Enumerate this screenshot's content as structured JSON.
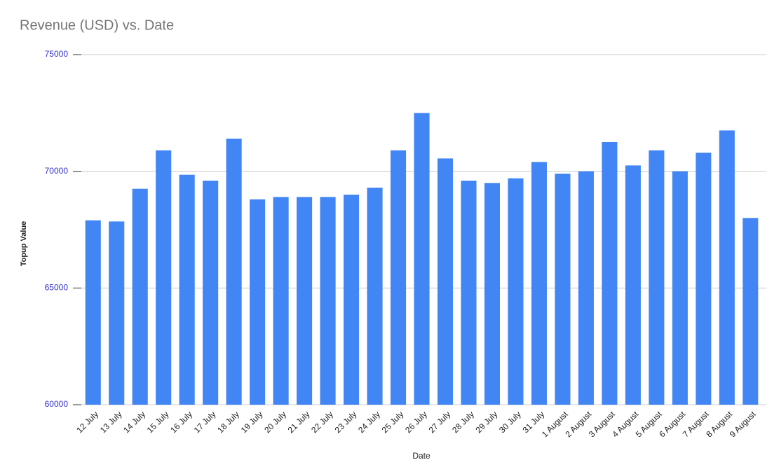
{
  "chart_data": {
    "type": "bar",
    "title": "Revenue (USD) vs. Date",
    "x_label": "Date",
    "y_label": "Topup Value",
    "categories": [
      "12 July",
      "13 July",
      "14 July",
      "15 July",
      "16 July",
      "17 July",
      "18 July",
      "19 July",
      "20 July",
      "21 July",
      "22 July",
      "23 July",
      "24 July",
      "25 July",
      "26 July",
      "27 July",
      "28 July",
      "29 July",
      "30 July",
      "31 July",
      "1 August",
      "2 August",
      "3 August",
      "4 August",
      "5 August",
      "6 August",
      "7 August",
      "8 August",
      "9 August"
    ],
    "values": [
      67900,
      67850,
      69250,
      70900,
      69850,
      69600,
      71400,
      68800,
      68900,
      68900,
      68900,
      69000,
      69300,
      70900,
      72500,
      70550,
      69600,
      69500,
      69700,
      70400,
      69900,
      70000,
      71250,
      70250,
      70900,
      70000,
      70800,
      71750,
      68000
    ],
    "color": "#4285f4",
    "ylim": [
      60000,
      75000
    ],
    "yticks": [
      60000,
      65000,
      70000,
      75000
    ],
    "grid": true
  }
}
